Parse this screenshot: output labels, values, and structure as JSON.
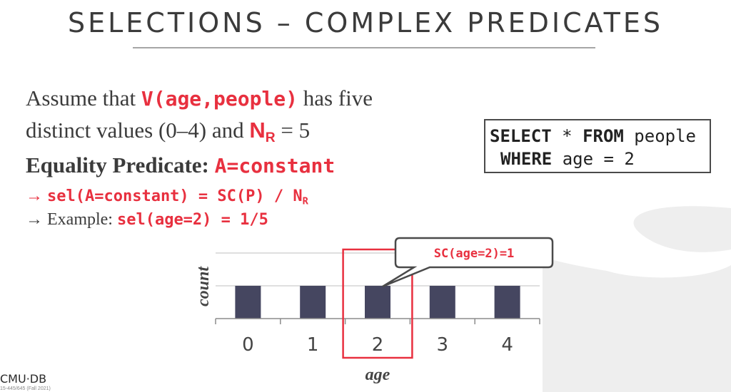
{
  "title": "SELECTIONS – COMPLEX PREDICATES",
  "intro": {
    "part1": "Assume that ",
    "v_expr": "V(age,people)",
    "part2": " has five",
    "part3": "distinct values (0–4) and ",
    "n_main": "N",
    "n_sub": "R",
    "part4": " = 5"
  },
  "equality": {
    "label": "Equality Predicate",
    "colon": ": ",
    "expr": "A=constant"
  },
  "bullet1": {
    "arrow": "→ ",
    "expr": "sel(A=constant) = SC(P) / N",
    "sub": "R"
  },
  "bullet2": {
    "arrow": "→ ",
    "text": "Example: ",
    "expr": "sel(age=2) = 1/5"
  },
  "sql": {
    "kw_select": "SELECT",
    "star": " * ",
    "kw_from": "FROM",
    "table": " people",
    "kw_where": "WHERE",
    "cond": " age = 2"
  },
  "callout": "SC(age=2)=1",
  "footer": {
    "logo": "CMU·DB",
    "sub": "15-445/645 (Fall 2021)"
  },
  "colors": {
    "accent": "#e8303f",
    "bar": "#454660",
    "text": "#3b3b3b"
  },
  "chart_data": {
    "type": "bar",
    "categories": [
      "0",
      "1",
      "2",
      "3",
      "4"
    ],
    "values": [
      1,
      1,
      1,
      1,
      1
    ],
    "xlabel": "age",
    "ylabel": "count",
    "ylim": [
      0,
      2
    ],
    "grid": true,
    "highlight_category": "2"
  }
}
